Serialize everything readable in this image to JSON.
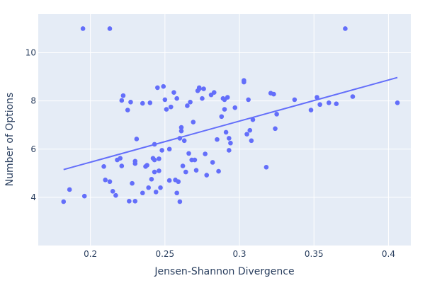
{
  "colors": {
    "plot_background": "#e5ecf6",
    "grid": "#ffffff",
    "marker": "#636efa",
    "trendline": "#636efa",
    "text": "#2a3f5f"
  },
  "chart_data": {
    "type": "scatter",
    "xlabel": "Jensen-Shannon Divergence",
    "ylabel": "Number of Options",
    "xlim": [
      0.165,
      0.415
    ],
    "ylim": [
      2.0,
      11.6
    ],
    "x_ticks": [
      0.2,
      0.25,
      0.3,
      0.35,
      0.4
    ],
    "x_tick_labels": [
      "0.2",
      "0.25",
      "0.3",
      "0.35",
      "0.4"
    ],
    "y_ticks": [
      4,
      6,
      8,
      10
    ],
    "y_tick_labels": [
      "4",
      "6",
      "8",
      "10"
    ],
    "grid": true,
    "legend": false,
    "points": [
      [
        0.182,
        3.82
      ],
      [
        0.186,
        4.32
      ],
      [
        0.195,
        11.0
      ],
      [
        0.196,
        4.05
      ],
      [
        0.209,
        5.28
      ],
      [
        0.21,
        4.72
      ],
      [
        0.213,
        11.0
      ],
      [
        0.213,
        4.65
      ],
      [
        0.215,
        4.25
      ],
      [
        0.217,
        4.08
      ],
      [
        0.218,
        5.55
      ],
      [
        0.22,
        5.62
      ],
      [
        0.221,
        5.3
      ],
      [
        0.221,
        8.02
      ],
      [
        0.222,
        8.22
      ],
      [
        0.225,
        7.62
      ],
      [
        0.226,
        3.84
      ],
      [
        0.227,
        7.95
      ],
      [
        0.228,
        4.58
      ],
      [
        0.23,
        3.84
      ],
      [
        0.23,
        5.5
      ],
      [
        0.23,
        5.4
      ],
      [
        0.231,
        6.42
      ],
      [
        0.235,
        7.9
      ],
      [
        0.235,
        4.18
      ],
      [
        0.237,
        5.28
      ],
      [
        0.238,
        5.33
      ],
      [
        0.239,
        4.4
      ],
      [
        0.24,
        7.92
      ],
      [
        0.241,
        4.75
      ],
      [
        0.242,
        5.62
      ],
      [
        0.243,
        5.05
      ],
      [
        0.243,
        6.2
      ],
      [
        0.243,
        5.55
      ],
      [
        0.244,
        4.22
      ],
      [
        0.245,
        8.55
      ],
      [
        0.246,
        5.6
      ],
      [
        0.246,
        5.1
      ],
      [
        0.247,
        4.4
      ],
      [
        0.248,
        5.95
      ],
      [
        0.249,
        8.6
      ],
      [
        0.25,
        8.05
      ],
      [
        0.251,
        7.65
      ],
      [
        0.253,
        4.7
      ],
      [
        0.253,
        6.0
      ],
      [
        0.254,
        7.75
      ],
      [
        0.256,
        8.35
      ],
      [
        0.257,
        4.72
      ],
      [
        0.258,
        8.1
      ],
      [
        0.258,
        4.18
      ],
      [
        0.259,
        4.65
      ],
      [
        0.26,
        6.45
      ],
      [
        0.26,
        3.82
      ],
      [
        0.261,
        6.75
      ],
      [
        0.261,
        6.9
      ],
      [
        0.262,
        5.3
      ],
      [
        0.263,
        6.35
      ],
      [
        0.264,
        5.05
      ],
      [
        0.265,
        7.8
      ],
      [
        0.266,
        5.82
      ],
      [
        0.267,
        7.95
      ],
      [
        0.268,
        5.55
      ],
      [
        0.269,
        7.12
      ],
      [
        0.27,
        5.55
      ],
      [
        0.271,
        5.12
      ],
      [
        0.272,
        8.42
      ],
      [
        0.273,
        8.55
      ],
      [
        0.273,
        8.5
      ],
      [
        0.275,
        8.1
      ],
      [
        0.276,
        8.5
      ],
      [
        0.277,
        5.8
      ],
      [
        0.278,
        4.92
      ],
      [
        0.281,
        8.25
      ],
      [
        0.282,
        5.45
      ],
      [
        0.283,
        8.35
      ],
      [
        0.285,
        6.4
      ],
      [
        0.286,
        5.08
      ],
      [
        0.288,
        7.35
      ],
      [
        0.289,
        8.1
      ],
      [
        0.29,
        7.65
      ],
      [
        0.29,
        8.05
      ],
      [
        0.291,
        6.7
      ],
      [
        0.292,
        8.15
      ],
      [
        0.293,
        5.95
      ],
      [
        0.293,
        6.45
      ],
      [
        0.294,
        6.25
      ],
      [
        0.297,
        7.72
      ],
      [
        0.303,
        8.78
      ],
      [
        0.303,
        8.85
      ],
      [
        0.305,
        6.62
      ],
      [
        0.306,
        8.05
      ],
      [
        0.307,
        6.78
      ],
      [
        0.308,
        6.35
      ],
      [
        0.309,
        7.22
      ],
      [
        0.318,
        5.25
      ],
      [
        0.321,
        8.32
      ],
      [
        0.323,
        8.28
      ],
      [
        0.324,
        6.85
      ],
      [
        0.325,
        7.45
      ],
      [
        0.337,
        8.05
      ],
      [
        0.348,
        7.62
      ],
      [
        0.352,
        8.15
      ],
      [
        0.354,
        7.85
      ],
      [
        0.36,
        7.92
      ],
      [
        0.365,
        7.88
      ],
      [
        0.371,
        11.0
      ],
      [
        0.376,
        8.18
      ],
      [
        0.406,
        7.92
      ]
    ],
    "trendline": {
      "x": [
        0.182,
        0.406
      ],
      "y": [
        5.15,
        8.97
      ]
    }
  }
}
